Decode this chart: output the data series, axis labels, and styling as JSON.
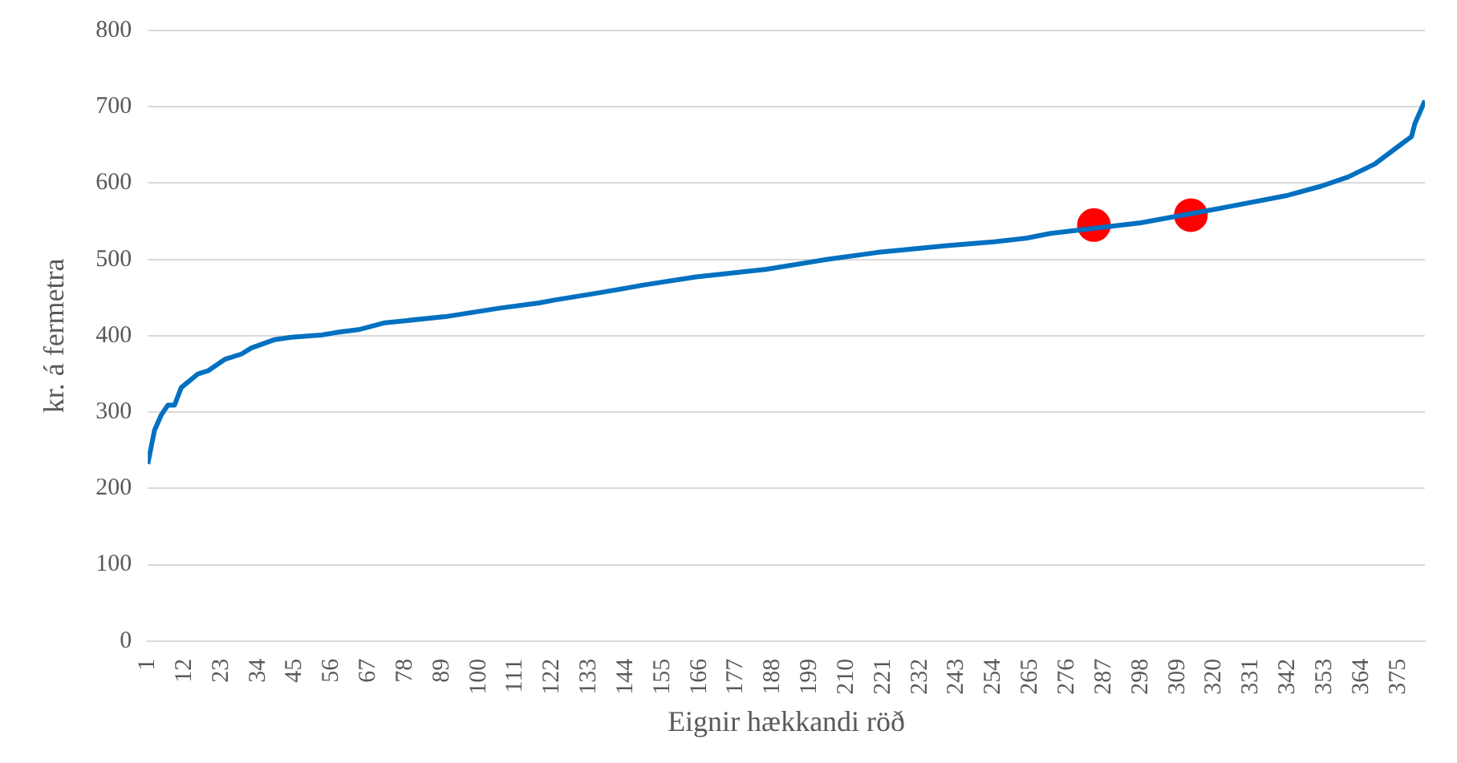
{
  "chart_data": {
    "type": "line",
    "xlabel": "Eignir hækkandi röð",
    "ylabel": "kr. á fermetra",
    "xlim": [
      1,
      383
    ],
    "xticks": [
      1,
      12,
      23,
      34,
      45,
      56,
      67,
      78,
      89,
      100,
      111,
      122,
      133,
      144,
      155,
      166,
      177,
      188,
      199,
      210,
      221,
      232,
      243,
      254,
      265,
      276,
      287,
      298,
      309,
      320,
      331,
      342,
      353,
      364,
      375
    ],
    "ylim": [
      0,
      800
    ],
    "yticks": [
      0,
      100,
      200,
      300,
      400,
      500,
      600,
      700,
      800
    ],
    "grid": "y",
    "legend": false,
    "series": [
      {
        "color": "#0070c0",
        "marker": "none",
        "x": [
          1,
          3,
          5,
          7,
          9,
          11,
          16,
          19,
          24,
          29,
          32,
          39,
          44,
          53,
          57,
          64,
          72,
          90,
          106,
          118,
          123,
          137,
          150,
          165,
          186,
          204,
          219,
          240,
          254,
          264,
          271,
          298,
          323,
          342,
          352,
          360,
          368,
          375,
          379,
          380,
          383
        ],
        "values": [
          232,
          276,
          296,
          309,
          309,
          332,
          350,
          354,
          369,
          376,
          384,
          395,
          398,
          401,
          404,
          408,
          417,
          425,
          436,
          443,
          447,
          457,
          467,
          477,
          487,
          500,
          509,
          518,
          523,
          528,
          534,
          548,
          568,
          584,
          596,
          608,
          625,
          648,
          661,
          678,
          708
        ]
      },
      {
        "type": "scatter",
        "color": "#ff0000",
        "marker": "circle",
        "x": [
          284,
          313
        ],
        "values": [
          545,
          558
        ]
      }
    ]
  }
}
